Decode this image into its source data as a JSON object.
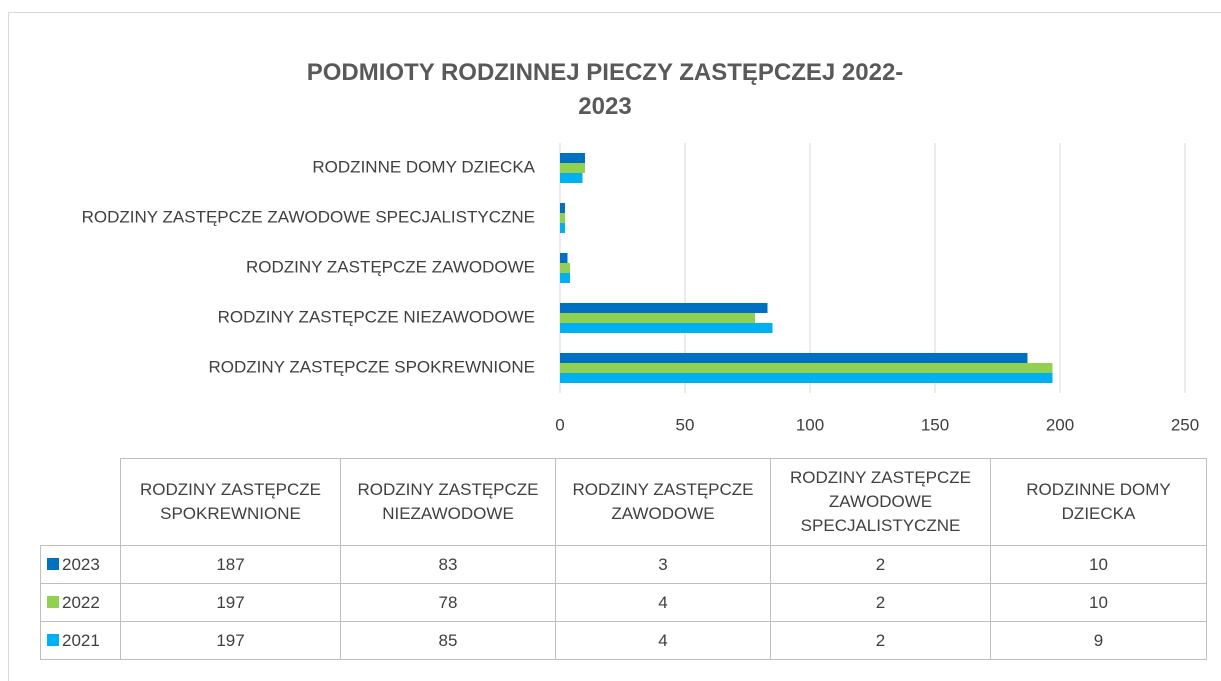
{
  "chart_data": {
    "type": "bar",
    "orientation": "horizontal",
    "title": "PODMIOTY RODZINNEJ PIECZY ZASTĘPCZEJ 2022-2023",
    "categories": [
      "RODZINY ZASTĘPCZE SPOKREWNIONE",
      "RODZINY ZASTĘPCZE NIEZAWODOWE",
      "RODZINY ZASTĘPCZE ZAWODOWE",
      "RODZINY ZASTĘPCZE ZAWODOWE SPECJALISTYCZNE",
      "RODZINNE DOMY DZIECKA"
    ],
    "series": [
      {
        "name": "2023",
        "color": "#0070c0",
        "values": [
          187,
          83,
          3,
          2,
          10
        ]
      },
      {
        "name": "2022",
        "color": "#92d050",
        "values": [
          197,
          78,
          4,
          2,
          10
        ]
      },
      {
        "name": "2021",
        "color": "#00b0f0",
        "values": [
          197,
          85,
          4,
          2,
          9
        ]
      }
    ],
    "xlim": [
      0,
      250
    ],
    "xticks": [
      0,
      50,
      100,
      150,
      200,
      250
    ],
    "grid": true,
    "data_table": true
  }
}
